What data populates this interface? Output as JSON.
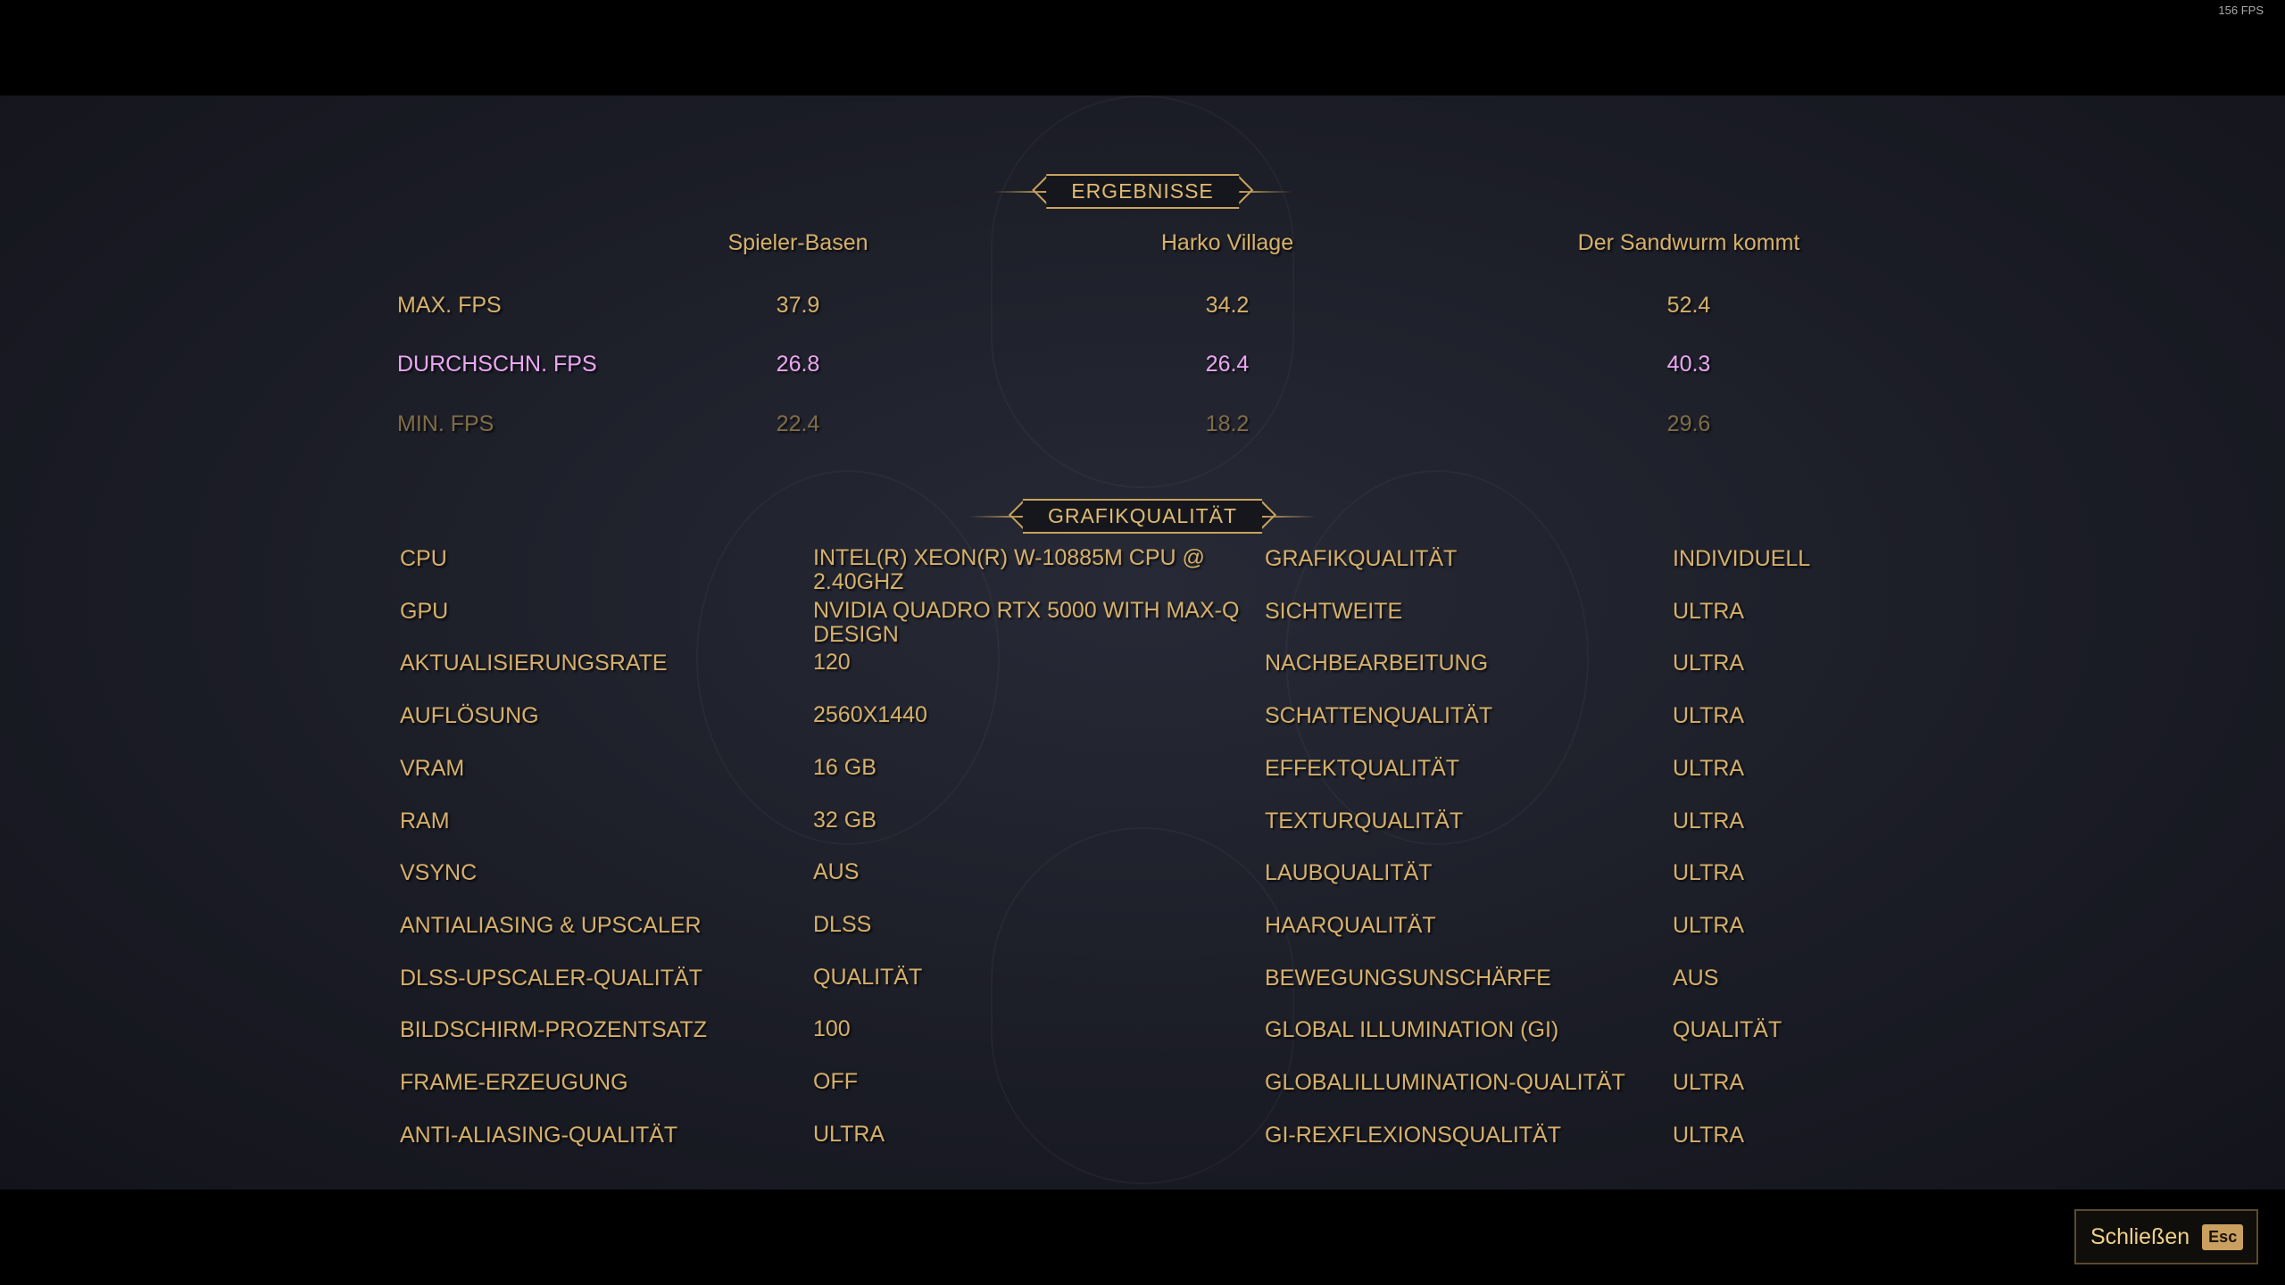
{
  "fps_counter": "156 FPS",
  "results": {
    "title": "ERGEBNISSE",
    "columns": [
      "Spieler-Basen",
      "Harko Village",
      "Der Sandwurm kommt"
    ],
    "rows": [
      {
        "label": "MAX. FPS",
        "values": [
          "37.9",
          "34.2",
          "52.4"
        ]
      },
      {
        "label": "DURCHSCHN. FPS",
        "values": [
          "26.8",
          "26.4",
          "40.3"
        ]
      },
      {
        "label": "MIN. FPS",
        "values": [
          "22.4",
          "18.2",
          "29.6"
        ]
      }
    ]
  },
  "graphics": {
    "title": "GRAFIKQUALITÄT",
    "left": [
      {
        "label": "CPU",
        "value": "INTEL(R) XEON(R) W-10885M CPU @ 2.40GHZ"
      },
      {
        "label": "GPU",
        "value": "NVIDIA QUADRO RTX 5000 WITH MAX-Q DESIGN"
      },
      {
        "label": "AKTUALISIERUNGSRATE",
        "value": "120"
      },
      {
        "label": "AUFLÖSUNG",
        "value": "2560X1440"
      },
      {
        "label": "VRAM",
        "value": "16 GB"
      },
      {
        "label": "RAM",
        "value": "32 GB"
      },
      {
        "label": "VSYNC",
        "value": "AUS"
      },
      {
        "label": "ANTIALIASING & UPSCALER",
        "value": "DLSS"
      },
      {
        "label": "DLSS-UPSCALER-QUALITÄT",
        "value": "QUALITÄT"
      },
      {
        "label": "BILDSCHIRM-PROZENTSATZ",
        "value": "100"
      },
      {
        "label": "FRAME-ERZEUGUNG",
        "value": "OFF"
      },
      {
        "label": "ANTI-ALIASING-QUALITÄT",
        "value": "ULTRA"
      }
    ],
    "right": [
      {
        "label": "GRAFIKQUALITÄT",
        "value": "INDIVIDUELL"
      },
      {
        "label": "SICHTWEITE",
        "value": "ULTRA"
      },
      {
        "label": "NACHBEARBEITUNG",
        "value": "ULTRA"
      },
      {
        "label": "SCHATTENQUALITÄT",
        "value": "ULTRA"
      },
      {
        "label": "EFFEKTQUALITÄT",
        "value": "ULTRA"
      },
      {
        "label": "TEXTURQUALITÄT",
        "value": "ULTRA"
      },
      {
        "label": "LAUBQUALITÄT",
        "value": "ULTRA"
      },
      {
        "label": "HAARQUALITÄT",
        "value": "ULTRA"
      },
      {
        "label": "BEWEGUNGSUNSCHÄRFE",
        "value": "AUS"
      },
      {
        "label": "GLOBAL ILLUMINATION (GI)",
        "value": "QUALITÄT"
      },
      {
        "label": "GLOBALILLUMINATION-QUALITÄT",
        "value": "ULTRA"
      },
      {
        "label": "GI-REXFLEXIONSQUALITÄT",
        "value": "ULTRA"
      }
    ]
  },
  "close": {
    "label": "Schließen",
    "key": "Esc"
  },
  "colors": {
    "gold": "#d6b06a",
    "highlight": "#eca7f2",
    "dim": "#7f6c48"
  }
}
